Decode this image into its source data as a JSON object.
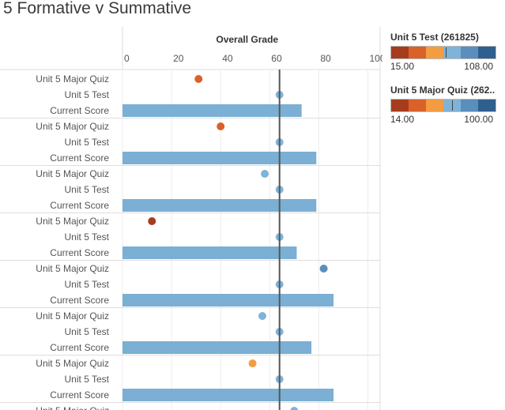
{
  "page": {
    "title": "5 Formative v Summative"
  },
  "chart_data": {
    "type": "scatter",
    "title": "",
    "xlabel": "Overall Grade",
    "x_ticks": [
      0,
      20,
      40,
      60,
      80,
      100
    ],
    "xlim": [
      0,
      105
    ],
    "reference_line": 64,
    "row_labels": [
      "Unit 5 Major Quiz",
      "Unit 5 Test",
      "Current Score"
    ],
    "groups": [
      {
        "quiz": 31,
        "test": 64,
        "score": 73
      },
      {
        "quiz": 40,
        "test": 64,
        "score": 79
      },
      {
        "quiz": 58,
        "test": 64,
        "score": 79
      },
      {
        "quiz": 12,
        "test": 64,
        "score": 71
      },
      {
        "quiz": 82,
        "test": 64,
        "score": 86
      },
      {
        "quiz": 57,
        "test": 64,
        "score": 77
      },
      {
        "quiz": 53,
        "test": 64,
        "score": 86
      },
      {
        "quiz": 70,
        "test": null,
        "score": null
      }
    ],
    "grid": true
  },
  "legends": [
    {
      "title": "Unit 5 Test (261825)",
      "min_label": "15.00",
      "max_label": "108.00",
      "colors": [
        "#a63c1e",
        "#d9612a",
        "#f39c42",
        "#7fb3d8",
        "#5a8ebd",
        "#2f5f8f"
      ],
      "marker_fraction": 0.52
    },
    {
      "title": "Unit 5 Major Quiz (262..",
      "min_label": "14.00",
      "max_label": "100.00",
      "colors": [
        "#a63c1e",
        "#d9612a",
        "#f39c42",
        "#7fb3d8",
        "#5a8ebd",
        "#2f5f8f"
      ],
      "marker_fraction": 0.58
    }
  ],
  "colors": {
    "bar": "#7bafd4",
    "reference_line": "#555555",
    "grid": "#ececec",
    "separator": "#dedede"
  }
}
